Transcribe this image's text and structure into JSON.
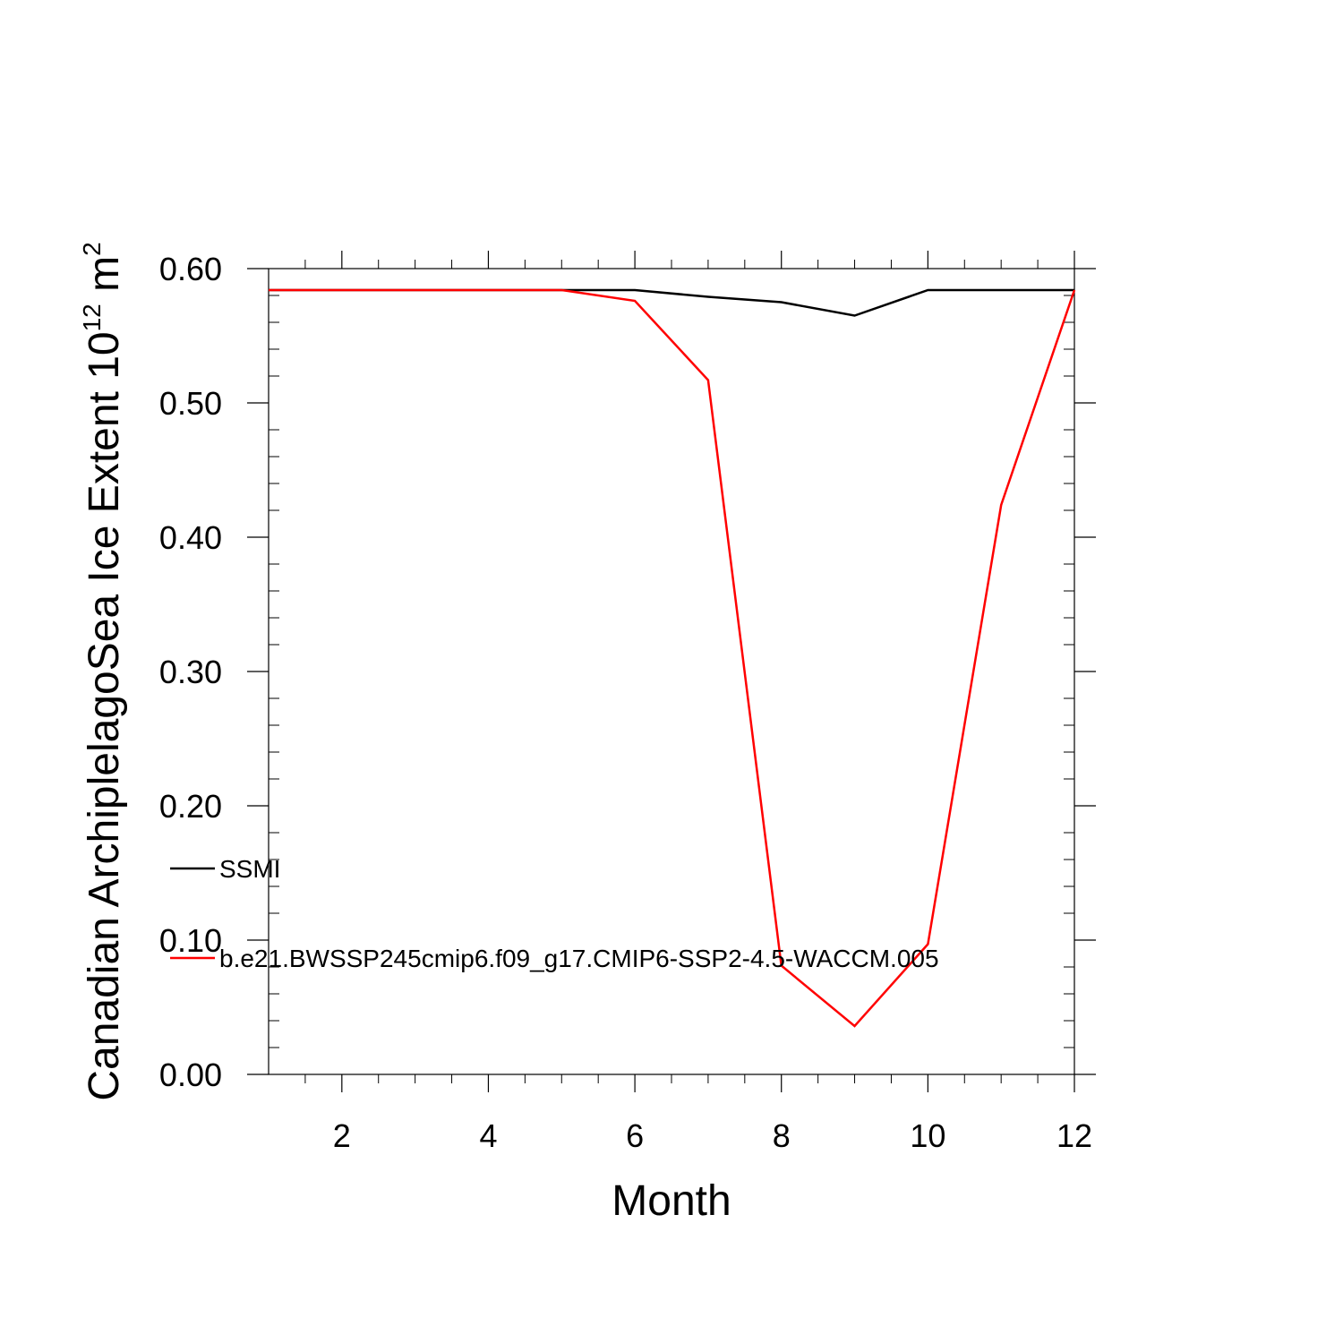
{
  "chart_data": {
    "type": "line",
    "xlabel": "Month",
    "ylabel": {
      "prefix": "Canadian ArchiplelagoSea Ice Extent 10",
      "exponent1": "12",
      "middle": " m",
      "exponent2": "2"
    },
    "xlim": [
      1,
      12
    ],
    "ylim": [
      0.0,
      0.6
    ],
    "xticks": [
      2,
      4,
      6,
      8,
      10,
      12
    ],
    "xtick_labels": [
      "2",
      "4",
      "6",
      "8",
      "10",
      "12"
    ],
    "yticks": [
      0.0,
      0.1,
      0.2,
      0.3,
      0.4,
      0.5,
      0.6
    ],
    "ytick_labels": [
      "0.00",
      "0.10",
      "0.20",
      "0.30",
      "0.40",
      "0.50",
      "0.60"
    ],
    "grid": false,
    "legend_position": "left-inside",
    "x": [
      1,
      2,
      3,
      4,
      5,
      6,
      7,
      8,
      9,
      10,
      11,
      12
    ],
    "series": [
      {
        "name": "SSMI",
        "color": "#000000",
        "values": [
          0.584,
          0.584,
          0.584,
          0.584,
          0.584,
          0.584,
          0.579,
          0.575,
          0.565,
          0.584,
          0.584,
          0.584
        ]
      },
      {
        "name": "b.e21.BWSSP245cmip6.f09_g17.CMIP6-SSP2-4.5-WACCM.005",
        "color": "#ff0000",
        "values": [
          0.584,
          0.584,
          0.584,
          0.584,
          0.584,
          0.576,
          0.517,
          0.081,
          0.036,
          0.097,
          0.424,
          0.584
        ]
      }
    ]
  }
}
